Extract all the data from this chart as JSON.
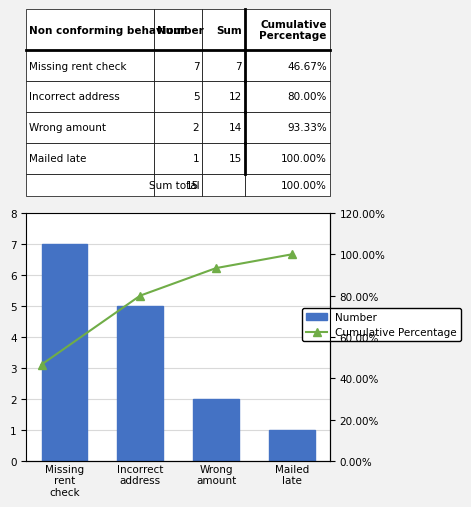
{
  "table_headers": [
    "Non conforming behaviour",
    "Number",
    "Sum",
    "Cumulative\nPercentage"
  ],
  "table_rows": [
    [
      "Missing rent check",
      "7",
      "7",
      "46.67%"
    ],
    [
      "Incorrect address",
      "5",
      "12",
      "80.00%"
    ],
    [
      "Wrong amount",
      "2",
      "14",
      "93.33%"
    ],
    [
      "Mailed late",
      "1",
      "15",
      "100.00%"
    ],
    [
      "Sum total",
      "15",
      "",
      "100.00%"
    ]
  ],
  "categories": [
    "Missing\nrent\ncheck",
    "Incorrect\naddress",
    "Wrong\namount",
    "Mailed\nlate"
  ],
  "bar_values": [
    7,
    5,
    2,
    1
  ],
  "cumulative_pct": [
    46.67,
    80.0,
    93.33,
    100.0
  ],
  "bar_color": "#4472C4",
  "line_color": "#70AD47",
  "marker_style": "^",
  "ylim_left": [
    0,
    8
  ],
  "ylim_right": [
    0,
    120
  ],
  "yticks_left": [
    0,
    1,
    2,
    3,
    4,
    5,
    6,
    7,
    8
  ],
  "yticks_right_labels": [
    "0.00%",
    "20.00%",
    "40.00%",
    "60.00%",
    "80.00%",
    "100.00%",
    "120.00%"
  ],
  "yticks_right_vals": [
    0,
    20,
    40,
    60,
    80,
    100,
    120
  ],
  "legend_number_label": "Number",
  "legend_cumulative_label": "Cumulative Percentage",
  "background_color": "#FFFFFF",
  "table_bg": "#FFFFFF",
  "grid_color": "#D9D9D9",
  "chart_area_color": "#FFFFFF"
}
